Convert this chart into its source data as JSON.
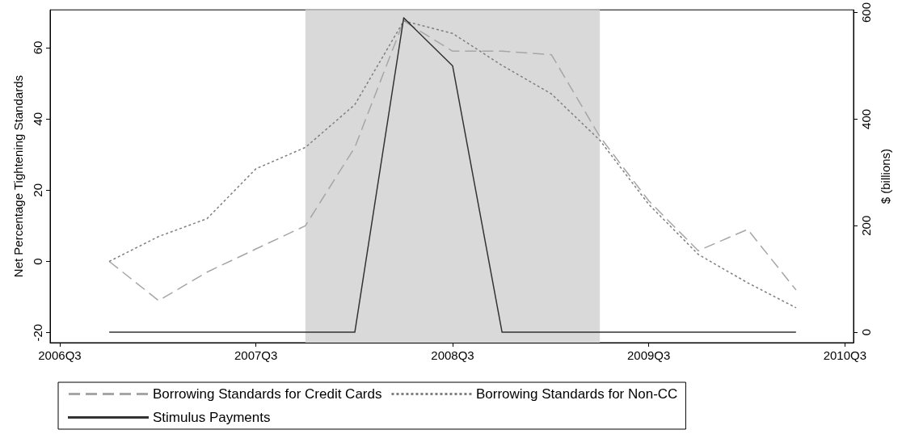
{
  "chart_data": {
    "type": "line",
    "ylabel": "Net Percentage Tightening Standards",
    "y2label": "$ (billions)",
    "x": [
      "2006-10",
      "2007-01",
      "2007-04",
      "2007-07",
      "2007-10",
      "2008-01",
      "2008-04",
      "2008-07",
      "2008-10",
      "2009-01",
      "2009-04",
      "2009-07",
      "2009-10",
      "2010-01",
      "2010-04"
    ],
    "xlim": [
      "2006-06-13",
      "2010-07-17"
    ],
    "xticks": [
      {
        "value": "2006-07",
        "label": "2006Q3"
      },
      {
        "value": "2007-07",
        "label": "2007Q3"
      },
      {
        "value": "2008-07",
        "label": "2008Q3"
      },
      {
        "value": "2009-07",
        "label": "2009Q3"
      },
      {
        "value": "2010-07",
        "label": "2010Q3"
      }
    ],
    "ylim": [
      -22.8,
      70.6
    ],
    "yticks": [
      -20,
      0,
      20,
      40,
      60
    ],
    "y2lim": [
      -19.6,
      605
    ],
    "y2ticks": [
      0,
      200,
      400,
      600
    ],
    "series": [
      {
        "name": "Borrowing Standards for Credit Cards",
        "color": "#a6a6a6",
        "line_style": "dashed",
        "values": [
          0,
          -11,
          -3,
          3.5,
          10,
          32,
          67.5,
          59,
          59,
          58,
          35,
          17,
          3,
          9,
          -8
        ]
      },
      {
        "name": "Borrowing Standards for Non-CC",
        "color": "#7f7f7f",
        "line_style": "dotted",
        "values": [
          0,
          7,
          12,
          26,
          32,
          44,
          67.5,
          64,
          55,
          47,
          34,
          16,
          2,
          -6,
          -13
        ]
      },
      {
        "name": "Stimulus Payments",
        "color": "#333333",
        "line_style": "solid",
        "axis": "y2",
        "values": [
          0,
          0,
          0,
          0,
          0,
          0,
          590,
          500,
          0,
          0,
          0,
          0,
          0,
          0,
          0
        ]
      }
    ],
    "bands": [
      {
        "axis": "x",
        "from": "2007-10",
        "to": "2009-04",
        "color": "#d9d9d9"
      }
    ],
    "legend": "bottom",
    "marker": "none"
  }
}
